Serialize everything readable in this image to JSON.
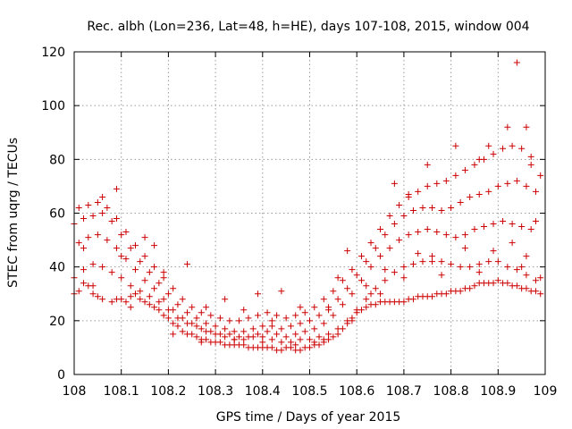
{
  "chart_data": {
    "type": "scatter",
    "title": "Rec. albh (Lon=236, Lat=48, h=HE), days 107-108, 2015, window 004",
    "xlabel": "GPS time / Days of year 2015",
    "ylabel": "STEC from uqrg / TECUs",
    "xlim": [
      108,
      109
    ],
    "ylim": [
      0,
      120
    ],
    "x_ticks": [
      108,
      108.1,
      108.2,
      108.3,
      108.4,
      108.5,
      108.6,
      108.7,
      108.8,
      108.9,
      109
    ],
    "y_ticks": [
      0,
      20,
      40,
      60,
      80,
      100,
      120
    ],
    "grid": true,
    "marker": "plus",
    "color": "#cc0000",
    "points": [
      [
        108.0,
        30
      ],
      [
        108.01,
        31
      ],
      [
        108.02,
        34
      ],
      [
        108.03,
        33
      ],
      [
        108.04,
        30
      ],
      [
        108.05,
        29
      ],
      [
        108.06,
        28
      ],
      [
        108.08,
        27
      ],
      [
        108.09,
        28
      ],
      [
        108.1,
        28
      ],
      [
        108.11,
        27
      ],
      [
        108.12,
        29
      ],
      [
        108.13,
        30
      ],
      [
        108.14,
        28
      ],
      [
        108.15,
        27
      ],
      [
        108.16,
        26
      ],
      [
        108.17,
        25
      ],
      [
        108.18,
        24
      ],
      [
        108.19,
        22
      ],
      [
        108.2,
        21
      ],
      [
        108.21,
        19
      ],
      [
        108.22,
        18
      ],
      [
        108.23,
        16
      ],
      [
        108.24,
        15
      ],
      [
        108.25,
        15
      ],
      [
        108.26,
        14
      ],
      [
        108.27,
        13
      ],
      [
        108.28,
        13
      ],
      [
        108.29,
        12
      ],
      [
        108.3,
        12
      ],
      [
        108.31,
        12
      ],
      [
        108.32,
        11
      ],
      [
        108.33,
        11
      ],
      [
        108.34,
        11
      ],
      [
        108.35,
        11
      ],
      [
        108.36,
        11
      ],
      [
        108.37,
        10
      ],
      [
        108.38,
        10
      ],
      [
        108.39,
        10
      ],
      [
        108.4,
        10
      ],
      [
        108.41,
        10
      ],
      [
        108.42,
        10
      ],
      [
        108.43,
        9
      ],
      [
        108.44,
        9
      ],
      [
        108.45,
        10
      ],
      [
        108.46,
        10
      ],
      [
        108.47,
        9
      ],
      [
        108.48,
        9
      ],
      [
        108.49,
        10
      ],
      [
        108.5,
        10
      ],
      [
        108.51,
        11
      ],
      [
        108.52,
        11
      ],
      [
        108.53,
        12
      ],
      [
        108.54,
        13
      ],
      [
        108.55,
        14
      ],
      [
        108.56,
        15
      ],
      [
        108.57,
        17
      ],
      [
        108.58,
        19
      ],
      [
        108.59,
        21
      ],
      [
        108.6,
        23
      ],
      [
        108.61,
        24
      ],
      [
        108.62,
        25
      ],
      [
        108.63,
        26
      ],
      [
        108.64,
        26
      ],
      [
        108.65,
        27
      ],
      [
        108.66,
        27
      ],
      [
        108.67,
        27
      ],
      [
        108.68,
        27
      ],
      [
        108.69,
        27
      ],
      [
        108.7,
        27
      ],
      [
        108.71,
        28
      ],
      [
        108.72,
        28
      ],
      [
        108.73,
        29
      ],
      [
        108.74,
        29
      ],
      [
        108.75,
        29
      ],
      [
        108.76,
        29
      ],
      [
        108.77,
        30
      ],
      [
        108.78,
        30
      ],
      [
        108.79,
        30
      ],
      [
        108.8,
        31
      ],
      [
        108.81,
        31
      ],
      [
        108.82,
        31
      ],
      [
        108.83,
        32
      ],
      [
        108.84,
        32
      ],
      [
        108.85,
        33
      ],
      [
        108.86,
        34
      ],
      [
        108.87,
        34
      ],
      [
        108.88,
        34
      ],
      [
        108.89,
        34
      ],
      [
        108.9,
        35
      ],
      [
        108.91,
        34
      ],
      [
        108.92,
        34
      ],
      [
        108.93,
        33
      ],
      [
        108.94,
        33
      ],
      [
        108.95,
        32
      ],
      [
        108.96,
        32
      ],
      [
        108.97,
        31
      ],
      [
        108.98,
        31
      ],
      [
        108.99,
        30
      ],
      [
        108.0,
        36
      ],
      [
        108.02,
        39
      ],
      [
        108.04,
        41
      ],
      [
        108.06,
        40
      ],
      [
        108.08,
        38
      ],
      [
        108.1,
        36
      ],
      [
        108.12,
        33
      ],
      [
        108.14,
        31
      ],
      [
        108.16,
        29
      ],
      [
        108.18,
        27
      ],
      [
        108.2,
        24
      ],
      [
        108.22,
        21
      ],
      [
        108.24,
        19
      ],
      [
        108.26,
        18
      ],
      [
        108.28,
        16
      ],
      [
        108.3,
        15
      ],
      [
        108.32,
        14
      ],
      [
        108.34,
        13
      ],
      [
        108.36,
        13
      ],
      [
        108.38,
        14
      ],
      [
        108.4,
        14
      ],
      [
        108.42,
        13
      ],
      [
        108.44,
        12
      ],
      [
        108.46,
        12
      ],
      [
        108.48,
        13
      ],
      [
        108.5,
        13
      ],
      [
        108.52,
        14
      ],
      [
        108.54,
        15
      ],
      [
        108.56,
        17
      ],
      [
        108.58,
        20
      ],
      [
        108.6,
        24
      ],
      [
        108.62,
        28
      ],
      [
        108.64,
        32
      ],
      [
        108.66,
        35
      ],
      [
        108.68,
        38
      ],
      [
        108.7,
        40
      ],
      [
        108.72,
        41
      ],
      [
        108.74,
        42
      ],
      [
        108.76,
        42
      ],
      [
        108.78,
        42
      ],
      [
        108.8,
        41
      ],
      [
        108.82,
        40
      ],
      [
        108.84,
        40
      ],
      [
        108.86,
        41
      ],
      [
        108.88,
        42
      ],
      [
        108.9,
        42
      ],
      [
        108.92,
        40
      ],
      [
        108.94,
        39
      ],
      [
        108.96,
        37
      ],
      [
        108.98,
        35
      ],
      [
        108.01,
        49
      ],
      [
        108.03,
        51
      ],
      [
        108.05,
        52
      ],
      [
        108.07,
        50
      ],
      [
        108.09,
        47
      ],
      [
        108.11,
        43
      ],
      [
        108.13,
        39
      ],
      [
        108.15,
        35
      ],
      [
        108.17,
        32
      ],
      [
        108.19,
        28
      ],
      [
        108.21,
        24
      ],
      [
        108.23,
        21
      ],
      [
        108.25,
        19
      ],
      [
        108.27,
        17
      ],
      [
        108.29,
        16
      ],
      [
        108.31,
        15
      ],
      [
        108.33,
        15
      ],
      [
        108.35,
        14
      ],
      [
        108.37,
        14
      ],
      [
        108.39,
        15
      ],
      [
        108.41,
        16
      ],
      [
        108.43,
        15
      ],
      [
        108.45,
        14
      ],
      [
        108.47,
        15
      ],
      [
        108.49,
        16
      ],
      [
        108.51,
        17
      ],
      [
        108.53,
        19
      ],
      [
        108.55,
        22
      ],
      [
        108.57,
        26
      ],
      [
        108.59,
        30
      ],
      [
        108.61,
        35
      ],
      [
        108.63,
        40
      ],
      [
        108.65,
        44
      ],
      [
        108.67,
        47
      ],
      [
        108.69,
        50
      ],
      [
        108.71,
        52
      ],
      [
        108.73,
        53
      ],
      [
        108.75,
        54
      ],
      [
        108.77,
        53
      ],
      [
        108.79,
        52
      ],
      [
        108.81,
        51
      ],
      [
        108.83,
        52
      ],
      [
        108.85,
        54
      ],
      [
        108.87,
        55
      ],
      [
        108.89,
        56
      ],
      [
        108.91,
        57
      ],
      [
        108.93,
        56
      ],
      [
        108.95,
        55
      ],
      [
        108.97,
        54
      ],
      [
        108.0,
        56
      ],
      [
        108.02,
        58
      ],
      [
        108.04,
        59
      ],
      [
        108.06,
        60
      ],
      [
        108.08,
        57
      ],
      [
        108.1,
        52
      ],
      [
        108.12,
        47
      ],
      [
        108.14,
        42
      ],
      [
        108.16,
        38
      ],
      [
        108.18,
        34
      ],
      [
        108.2,
        30
      ],
      [
        108.22,
        26
      ],
      [
        108.24,
        23
      ],
      [
        108.26,
        21
      ],
      [
        108.28,
        19
      ],
      [
        108.3,
        18
      ],
      [
        108.32,
        17
      ],
      [
        108.34,
        16
      ],
      [
        108.36,
        16
      ],
      [
        108.38,
        17
      ],
      [
        108.4,
        18
      ],
      [
        108.42,
        18
      ],
      [
        108.44,
        17
      ],
      [
        108.46,
        18
      ],
      [
        108.48,
        19
      ],
      [
        108.5,
        20
      ],
      [
        108.52,
        22
      ],
      [
        108.54,
        25
      ],
      [
        108.56,
        28
      ],
      [
        108.58,
        32
      ],
      [
        108.6,
        37
      ],
      [
        108.62,
        42
      ],
      [
        108.64,
        47
      ],
      [
        108.66,
        52
      ],
      [
        108.68,
        56
      ],
      [
        108.7,
        59
      ],
      [
        108.72,
        61
      ],
      [
        108.74,
        62
      ],
      [
        108.76,
        62
      ],
      [
        108.78,
        61
      ],
      [
        108.8,
        62
      ],
      [
        108.82,
        64
      ],
      [
        108.84,
        66
      ],
      [
        108.86,
        67
      ],
      [
        108.88,
        68
      ],
      [
        108.9,
        70
      ],
      [
        108.92,
        71
      ],
      [
        108.94,
        72
      ],
      [
        108.96,
        70
      ],
      [
        108.98,
        68
      ],
      [
        108.01,
        62
      ],
      [
        108.03,
        63
      ],
      [
        108.05,
        64
      ],
      [
        108.07,
        62
      ],
      [
        108.09,
        58
      ],
      [
        108.11,
        53
      ],
      [
        108.13,
        48
      ],
      [
        108.15,
        44
      ],
      [
        108.17,
        40
      ],
      [
        108.19,
        36
      ],
      [
        108.21,
        32
      ],
      [
        108.23,
        28
      ],
      [
        108.25,
        25
      ],
      [
        108.27,
        23
      ],
      [
        108.29,
        22
      ],
      [
        108.31,
        21
      ],
      [
        108.33,
        20
      ],
      [
        108.35,
        20
      ],
      [
        108.37,
        21
      ],
      [
        108.39,
        22
      ],
      [
        108.41,
        23
      ],
      [
        108.43,
        22
      ],
      [
        108.45,
        21
      ],
      [
        108.47,
        22
      ],
      [
        108.49,
        23
      ],
      [
        108.51,
        25
      ],
      [
        108.53,
        28
      ],
      [
        108.55,
        31
      ],
      [
        108.57,
        35
      ],
      [
        108.59,
        39
      ],
      [
        108.61,
        44
      ],
      [
        108.63,
        49
      ],
      [
        108.65,
        54
      ],
      [
        108.67,
        59
      ],
      [
        108.69,
        63
      ],
      [
        108.71,
        66
      ],
      [
        108.73,
        68
      ],
      [
        108.75,
        70
      ],
      [
        108.77,
        71
      ],
      [
        108.79,
        72
      ],
      [
        108.81,
        74
      ],
      [
        108.83,
        76
      ],
      [
        108.85,
        78
      ],
      [
        108.87,
        80
      ],
      [
        108.89,
        82
      ],
      [
        108.91,
        84
      ],
      [
        108.93,
        85
      ],
      [
        108.95,
        84
      ],
      [
        108.97,
        81
      ],
      [
        108.06,
        66
      ],
      [
        108.09,
        69
      ],
      [
        108.17,
        48
      ],
      [
        108.24,
        41
      ],
      [
        108.32,
        28
      ],
      [
        108.39,
        30
      ],
      [
        108.44,
        31
      ],
      [
        108.48,
        25
      ],
      [
        108.56,
        36
      ],
      [
        108.58,
        46
      ],
      [
        108.62,
        33
      ],
      [
        108.68,
        71
      ],
      [
        108.71,
        67
      ],
      [
        108.75,
        78
      ],
      [
        108.81,
        85
      ],
      [
        108.86,
        80
      ],
      [
        108.88,
        85
      ],
      [
        108.92,
        92
      ],
      [
        108.94,
        116
      ],
      [
        108.96,
        92
      ],
      [
        108.97,
        78
      ],
      [
        108.99,
        74
      ],
      [
        108.98,
        57
      ],
      [
        108.96,
        44
      ],
      [
        108.93,
        49
      ],
      [
        108.86,
        38
      ],
      [
        108.78,
        37
      ],
      [
        108.73,
        45
      ],
      [
        108.66,
        39
      ],
      [
        108.63,
        30
      ],
      [
        108.54,
        24
      ],
      [
        108.51,
        12
      ],
      [
        108.42,
        20
      ],
      [
        108.36,
        24
      ],
      [
        108.28,
        25
      ],
      [
        108.19,
        38
      ],
      [
        108.12,
        25
      ],
      [
        108.04,
        33
      ],
      [
        108.02,
        47
      ],
      [
        108.1,
        44
      ],
      [
        108.15,
        51
      ],
      [
        108.21,
        15
      ],
      [
        108.27,
        12
      ],
      [
        108.34,
        13
      ],
      [
        108.4,
        12
      ],
      [
        108.47,
        11
      ],
      [
        108.53,
        13
      ],
      [
        108.59,
        20
      ],
      [
        108.65,
        30
      ],
      [
        108.7,
        36
      ],
      [
        108.76,
        44
      ],
      [
        108.83,
        47
      ],
      [
        108.89,
        46
      ],
      [
        108.95,
        40
      ],
      [
        108.99,
        36
      ]
    ]
  }
}
